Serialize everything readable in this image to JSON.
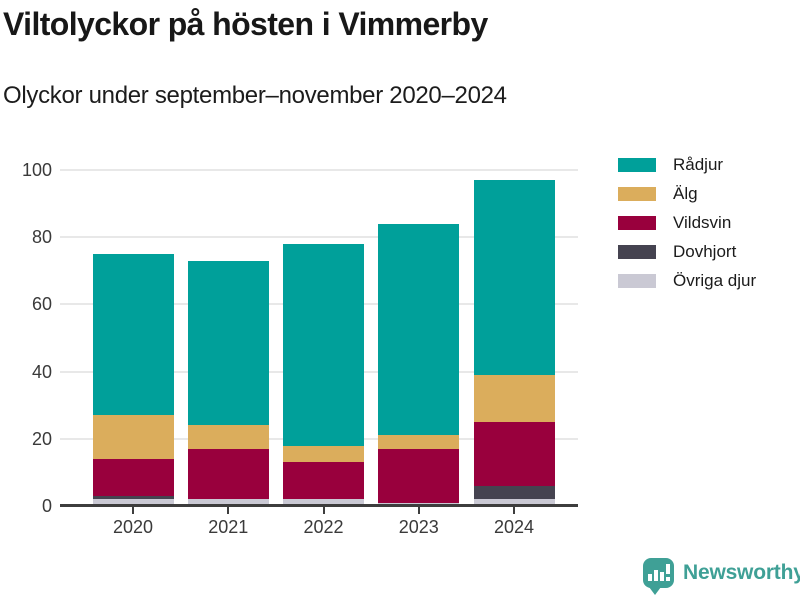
{
  "header": {
    "title": "Viltolyckor på hösten i Vimmerby",
    "subtitle": "Olyckor under september–november 2020–2024"
  },
  "chart_data": {
    "type": "bar",
    "stacked": true,
    "title": "Viltolyckor på hösten i Vimmerby",
    "subtitle": "Olyckor under september–november 2020–2024",
    "categories": [
      "2020",
      "2021",
      "2022",
      "2023",
      "2024"
    ],
    "series": [
      {
        "name": "Rådjur",
        "color": "#00a09a",
        "values": [
          48,
          49,
          60,
          63,
          58
        ]
      },
      {
        "name": "Älg",
        "color": "#dbad5c",
        "values": [
          13,
          7,
          5,
          4,
          14
        ]
      },
      {
        "name": "Vildsvin",
        "color": "#99003d",
        "values": [
          11,
          15,
          11,
          16,
          19
        ]
      },
      {
        "name": "Dovhjort",
        "color": "#454350",
        "values": [
          1,
          0,
          0,
          0,
          4
        ]
      },
      {
        "name": "Övriga djur",
        "color": "#cac9d4",
        "values": [
          2,
          2,
          2,
          1,
          2
        ]
      }
    ],
    "totals": [
      75,
      73,
      78,
      84,
      97
    ],
    "xlabel": "",
    "ylabel": "",
    "ylim": [
      0,
      100
    ],
    "yticks": [
      0,
      20,
      40,
      60,
      80,
      100
    ],
    "grid": true,
    "legend_position": "right",
    "gridline_color": "#e8e8e8",
    "axis_color": "#3d3d3d"
  },
  "footer": {
    "brand": "Newsworthy",
    "logo_icon": "bar-chart-speech-bubble-icon",
    "brand_color": "#3fa096"
  }
}
